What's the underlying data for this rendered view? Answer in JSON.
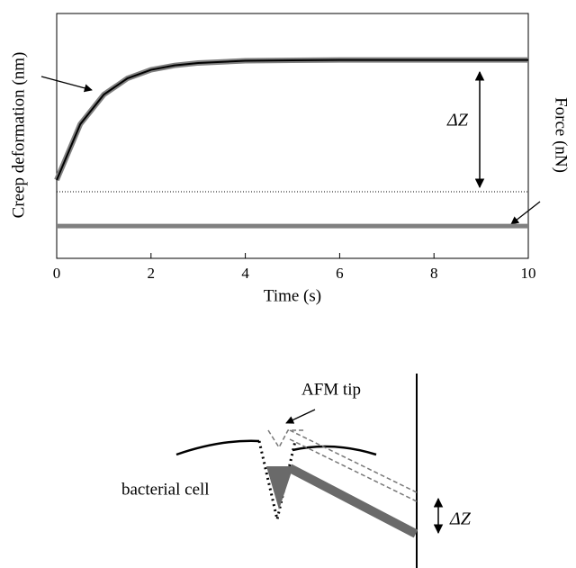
{
  "chart_data": {
    "type": "line",
    "x": [
      0,
      0.5,
      1,
      1.5,
      2,
      2.5,
      3,
      4,
      5,
      6,
      7,
      8,
      9,
      10
    ],
    "xlabel": "Time (s)",
    "ylabel": "Creep deformation (nm)",
    "y2label": "Force (nN)",
    "xlim": [
      0,
      10
    ],
    "xticks": [
      0,
      2,
      4,
      6,
      8,
      10
    ],
    "ylim": [
      0,
      1
    ],
    "series": [
      {
        "color": "#808080",
        "values": [
          0.32,
          0.548,
          0.669,
          0.735,
          0.77,
          0.788,
          0.798,
          0.807,
          0.809,
          0.81,
          0.81,
          0.81,
          0.81,
          0.81
        ]
      },
      {
        "color": "#000000",
        "values": [
          0.32,
          0.548,
          0.669,
          0.735,
          0.77,
          0.788,
          0.798,
          0.807,
          0.809,
          0.81,
          0.81,
          0.81,
          0.81,
          0.81
        ]
      },
      {
        "color": "#808080",
        "values": [
          0.132,
          0.132,
          0.132,
          0.132,
          0.132,
          0.132,
          0.132,
          0.132,
          0.132,
          0.132,
          0.132,
          0.132,
          0.132,
          0.132
        ]
      }
    ],
    "baseline": 0.272,
    "annotation": "ΔZ"
  },
  "diagram": {
    "tip_label": "AFM tip",
    "cell_label": "bacterial cell",
    "displacement_label": "ΔZ"
  }
}
